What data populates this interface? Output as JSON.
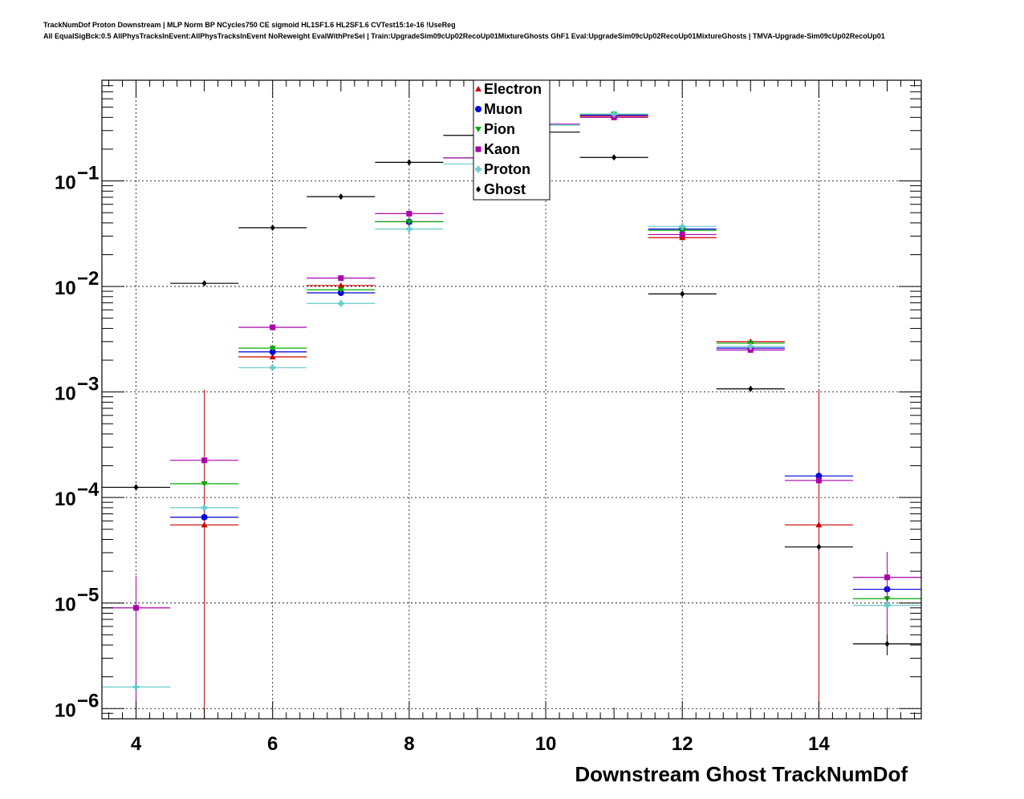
{
  "header": {
    "line1": "TrackNumDof Proton Downstream | MLP Norm BP NCycles750 CE sigmoid HL1SF1.6 HL2SF1.6 CVTest15:1e-16 !UseReg",
    "line2": "All EqualSigBck:0.5 AllPhysTracksInEvent:AllPhysTracksInEvent NoReweight EvalWithPreSel | Train:UpgradeSim09cUp02RecoUp01MixtureGhosts GhF1 Eval:UpgradeSim09cUp02RecoUp01MixtureGhosts | TMVA-Upgrade-Sim09cUp02RecoUp01"
  },
  "chart_data": {
    "type": "scatter",
    "xlabel": "Downstream Ghost TrackNumDof",
    "ylabel": "",
    "xlim": [
      3.5,
      15.5
    ],
    "ylim": [
      8e-07,
      0.9
    ],
    "ylog": true,
    "grid": true,
    "legend_position": "top-center",
    "x_ticks": [
      4,
      6,
      8,
      10,
      12,
      14
    ],
    "y_ticks": [
      {
        "value": 0.1,
        "label": "10",
        "exp": "−1"
      },
      {
        "value": 0.01,
        "label": "10",
        "exp": "−2"
      },
      {
        "value": 0.001,
        "label": "10",
        "exp": "−3"
      },
      {
        "value": 0.0001,
        "label": "10",
        "exp": "−4"
      },
      {
        "value": 1e-05,
        "label": "10",
        "exp": "−5"
      },
      {
        "value": 1e-06,
        "label": "10",
        "exp": "−6"
      }
    ],
    "series": [
      {
        "name": "Electron",
        "color": "#cc0000",
        "marker": "triangle-up",
        "points": [
          {
            "x": 5,
            "y": 5.5e-05,
            "err": 0.001
          },
          {
            "x": 6,
            "y": 0.00215
          },
          {
            "x": 7,
            "y": 0.0102
          },
          {
            "x": 8,
            "y": 0.041
          },
          {
            "x": 9,
            "y": 0.165
          },
          {
            "x": 10,
            "y": 0.34
          },
          {
            "x": 11,
            "y": 0.41
          },
          {
            "x": 12,
            "y": 0.029
          },
          {
            "x": 13,
            "y": 0.003
          },
          {
            "x": 14,
            "y": 5.5e-05,
            "err": 0.001
          }
        ]
      },
      {
        "name": "Muon",
        "color": "#0000dd",
        "marker": "circle",
        "points": [
          {
            "x": 5,
            "y": 6.5e-05
          },
          {
            "x": 6,
            "y": 0.0024
          },
          {
            "x": 7,
            "y": 0.0087
          },
          {
            "x": 8,
            "y": 0.041
          },
          {
            "x": 9,
            "y": 0.165
          },
          {
            "x": 10,
            "y": 0.34
          },
          {
            "x": 11,
            "y": 0.42
          },
          {
            "x": 12,
            "y": 0.035
          },
          {
            "x": 13,
            "y": 0.0026
          },
          {
            "x": 14,
            "y": 0.00016
          },
          {
            "x": 15,
            "y": 1.35e-05
          }
        ]
      },
      {
        "name": "Pion",
        "color": "#00aa00",
        "marker": "triangle-down",
        "points": [
          {
            "x": 5,
            "y": 0.000135
          },
          {
            "x": 6,
            "y": 0.0026
          },
          {
            "x": 7,
            "y": 0.0093
          },
          {
            "x": 8,
            "y": 0.041
          },
          {
            "x": 9,
            "y": 0.165
          },
          {
            "x": 10,
            "y": 0.34
          },
          {
            "x": 11,
            "y": 0.43
          },
          {
            "x": 12,
            "y": 0.034
          },
          {
            "x": 13,
            "y": 0.0029
          },
          {
            "x": 15,
            "y": 1.1e-05
          }
        ]
      },
      {
        "name": "Kaon",
        "color": "#aa00aa",
        "marker": "square",
        "points": [
          {
            "x": 4,
            "y": 9e-06,
            "err": 9e-06
          },
          {
            "x": 5,
            "y": 0.000225
          },
          {
            "x": 6,
            "y": 0.0041
          },
          {
            "x": 7,
            "y": 0.012
          },
          {
            "x": 8,
            "y": 0.049
          },
          {
            "x": 9,
            "y": 0.165
          },
          {
            "x": 10,
            "y": 0.345
          },
          {
            "x": 11,
            "y": 0.4
          },
          {
            "x": 12,
            "y": 0.031
          },
          {
            "x": 13,
            "y": 0.0025
          },
          {
            "x": 14,
            "y": 0.000145
          },
          {
            "x": 15,
            "y": 1.75e-05,
            "err": 1.3e-05
          }
        ]
      },
      {
        "name": "Proton",
        "color": "#66cccc",
        "marker": "cross",
        "points": [
          {
            "x": 4,
            "y": 1.6e-06
          },
          {
            "x": 5,
            "y": 8e-05
          },
          {
            "x": 6,
            "y": 0.0017
          },
          {
            "x": 7,
            "y": 0.0069
          },
          {
            "x": 8,
            "y": 0.035
          },
          {
            "x": 9,
            "y": 0.145
          },
          {
            "x": 10,
            "y": 0.34
          },
          {
            "x": 11,
            "y": 0.43
          },
          {
            "x": 12,
            "y": 0.037
          },
          {
            "x": 13,
            "y": 0.0027
          },
          {
            "x": 15,
            "y": 9.5e-06
          }
        ]
      },
      {
        "name": "Ghost",
        "color": "#000000",
        "marker": "diamond",
        "points": [
          {
            "x": 4,
            "y": 0.000125
          },
          {
            "x": 5,
            "y": 0.0107
          },
          {
            "x": 6,
            "y": 0.036
          },
          {
            "x": 7,
            "y": 0.071
          },
          {
            "x": 8,
            "y": 0.15
          },
          {
            "x": 9,
            "y": 0.27
          },
          {
            "x": 10,
            "y": 0.29
          },
          {
            "x": 11,
            "y": 0.167
          },
          {
            "x": 12,
            "y": 0.0085
          },
          {
            "x": 13,
            "y": 0.00107
          },
          {
            "x": 14,
            "y": 3.4e-05
          },
          {
            "x": 15,
            "y": 4.1e-06,
            "err": 9e-07
          }
        ]
      }
    ]
  }
}
